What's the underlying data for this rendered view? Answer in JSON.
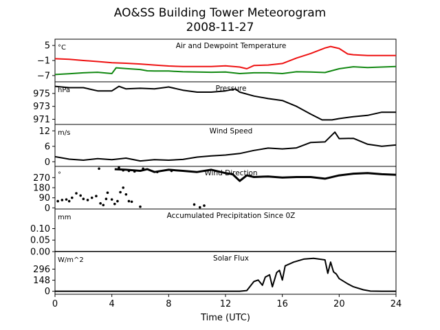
{
  "title": "AO&SS Building Tower Meteorogram",
  "subtitle": "2008-11-27",
  "colors": {
    "air_temp": "#ee1111",
    "dewpoint": "#118811",
    "trace": "#000000"
  },
  "chart_data": [
    {
      "type": "line",
      "label": "Air and Dewpoint Temperature",
      "unit": "°C",
      "xlabel": "",
      "ylim": [
        -9.5,
        7.5
      ],
      "yticks": [
        5,
        -1,
        -7
      ],
      "ytick_labels": [
        "5",
        "−1",
        "−7"
      ],
      "series": [
        {
          "key": "air",
          "color": "#ee1111",
          "points": [
            [
              0,
              -0.3
            ],
            [
              1,
              -0.5
            ],
            [
              2,
              -1.0
            ],
            [
              3,
              -1.4
            ],
            [
              4,
              -1.9
            ],
            [
              5,
              -2.1
            ],
            [
              6,
              -2.4
            ],
            [
              7,
              -2.8
            ],
            [
              8,
              -3.2
            ],
            [
              9,
              -3.4
            ],
            [
              10,
              -3.4
            ],
            [
              11,
              -3.4
            ],
            [
              12,
              -3.1
            ],
            [
              13,
              -3.6
            ],
            [
              13.5,
              -4.3
            ],
            [
              14,
              -3.0
            ],
            [
              15,
              -2.8
            ],
            [
              16,
              -2.2
            ],
            [
              17,
              0.0
            ],
            [
              18,
              1.8
            ],
            [
              19,
              4.0
            ],
            [
              19.4,
              4.6
            ],
            [
              20,
              3.8
            ],
            [
              20.6,
              1.6
            ],
            [
              21,
              1.3
            ],
            [
              22,
              1.0
            ],
            [
              23,
              1.0
            ],
            [
              24,
              1.0
            ]
          ]
        },
        {
          "key": "dew",
          "color": "#118811",
          "points": [
            [
              0,
              -6.6
            ],
            [
              1,
              -6.3
            ],
            [
              2,
              -5.9
            ],
            [
              3,
              -5.7
            ],
            [
              4,
              -6.2
            ],
            [
              4.3,
              -3.9
            ],
            [
              5,
              -4.2
            ],
            [
              6,
              -4.6
            ],
            [
              6.5,
              -5.1
            ],
            [
              7,
              -5.2
            ],
            [
              8,
              -5.2
            ],
            [
              9,
              -5.5
            ],
            [
              10,
              -5.6
            ],
            [
              11,
              -5.7
            ],
            [
              12,
              -5.6
            ],
            [
              13,
              -6.2
            ],
            [
              14,
              -5.9
            ],
            [
              15,
              -5.9
            ],
            [
              16,
              -6.2
            ],
            [
              17,
              -5.5
            ],
            [
              18,
              -5.6
            ],
            [
              19,
              -5.8
            ],
            [
              20,
              -4.3
            ],
            [
              21,
              -3.5
            ],
            [
              22,
              -3.8
            ],
            [
              23,
              -3.6
            ],
            [
              24,
              -3.4
            ]
          ]
        }
      ]
    },
    {
      "type": "line",
      "label": "Pressure",
      "unit": "hPa",
      "ylim": [
        970.2,
        976.8
      ],
      "yticks": [
        975,
        973,
        971
      ],
      "ytick_labels": [
        "975",
        "973",
        "971"
      ],
      "series": [
        {
          "key": "pressure",
          "color": "#000000",
          "points": [
            [
              0,
              976.1
            ],
            [
              1,
              975.9
            ],
            [
              2,
              975.9
            ],
            [
              3,
              975.4
            ],
            [
              4,
              975.4
            ],
            [
              4.5,
              976.1
            ],
            [
              5,
              975.7
            ],
            [
              6,
              975.8
            ],
            [
              7,
              975.7
            ],
            [
              8,
              976.0
            ],
            [
              9,
              975.5
            ],
            [
              10,
              975.2
            ],
            [
              11,
              975.2
            ],
            [
              12,
              975.4
            ],
            [
              12.7,
              975.7
            ],
            [
              13,
              975.2
            ],
            [
              14,
              974.6
            ],
            [
              15,
              974.2
            ],
            [
              16,
              973.9
            ],
            [
              17,
              973.0
            ],
            [
              18,
              971.8
            ],
            [
              18.8,
              970.9
            ],
            [
              19.5,
              970.9
            ],
            [
              20,
              971.1
            ],
            [
              21,
              971.4
            ],
            [
              22,
              971.6
            ],
            [
              23,
              972.1
            ],
            [
              24,
              972.1
            ]
          ]
        }
      ]
    },
    {
      "type": "line",
      "label": "Wind Speed",
      "unit": "m/s",
      "ylim": [
        -1.8,
        14.5
      ],
      "yticks": [
        12,
        6,
        0
      ],
      "ytick_labels": [
        "12",
        "6",
        "0"
      ],
      "series": [
        {
          "key": "wind_speed",
          "color": "#000000",
          "points": [
            [
              0,
              2.0
            ],
            [
              1,
              1.0
            ],
            [
              2,
              0.6
            ],
            [
              3,
              1.2
            ],
            [
              4,
              0.8
            ],
            [
              5,
              1.4
            ],
            [
              6,
              0.3
            ],
            [
              7,
              0.8
            ],
            [
              8,
              0.6
            ],
            [
              9,
              0.9
            ],
            [
              10,
              1.8
            ],
            [
              11,
              2.3
            ],
            [
              12,
              2.6
            ],
            [
              13,
              3.2
            ],
            [
              14,
              4.4
            ],
            [
              15,
              5.3
            ],
            [
              16,
              5.0
            ],
            [
              17,
              5.4
            ],
            [
              18,
              7.5
            ],
            [
              19,
              7.7
            ],
            [
              19.7,
              11.5
            ],
            [
              20,
              9.0
            ],
            [
              21,
              9.1
            ],
            [
              22,
              6.8
            ],
            [
              23,
              6.0
            ],
            [
              24,
              6.5
            ]
          ]
        }
      ]
    },
    {
      "type": "scatter",
      "label": "Wind Direction",
      "unit": "°",
      "ylim": [
        -10,
        370
      ],
      "yticks": [
        270,
        180,
        90,
        0
      ],
      "ytick_labels": [
        "270",
        "180",
        "90",
        "0"
      ],
      "series": [
        {
          "key": "wind_dir_scatter",
          "color": "#000000",
          "points": [
            [
              0.2,
              60
            ],
            [
              0.5,
              70
            ],
            [
              0.8,
              75
            ],
            [
              1.0,
              60
            ],
            [
              1.2,
              90
            ],
            [
              1.5,
              130
            ],
            [
              1.8,
              110
            ],
            [
              2.0,
              80
            ],
            [
              2.3,
              70
            ],
            [
              2.6,
              90
            ],
            [
              2.9,
              105
            ],
            [
              3.2,
              40
            ],
            [
              3.4,
              25
            ],
            [
              3.6,
              80
            ],
            [
              3.7,
              135
            ],
            [
              4.0,
              75
            ],
            [
              4.2,
              35
            ],
            [
              4.4,
              60
            ],
            [
              4.6,
              140
            ],
            [
              4.8,
              180
            ],
            [
              5.0,
              120
            ],
            [
              5.2,
              60
            ],
            [
              5.4,
              55
            ],
            [
              6.0,
              10
            ],
            [
              4.8,
              335
            ],
            [
              5.2,
              330
            ],
            [
              5.6,
              325
            ],
            [
              3.1,
              350
            ],
            [
              9.8,
              30
            ],
            [
              10.2,
              5
            ],
            [
              10.5,
              20
            ],
            [
              4.5,
              360
            ],
            [
              6.2,
              350
            ],
            [
              7.2,
              320
            ],
            [
              8.2,
              330
            ]
          ]
        },
        {
          "key": "wind_dir_line",
          "color": "#000000",
          "points": [
            [
              4.2,
              345
            ],
            [
              5.0,
              340
            ],
            [
              6.0,
              330
            ],
            [
              6.5,
              345
            ],
            [
              7.0,
              320
            ],
            [
              8.0,
              340
            ],
            [
              9.0,
              330
            ],
            [
              10.0,
              320
            ],
            [
              11.0,
              340
            ],
            [
              12.0,
              310
            ],
            [
              12.5,
              300
            ],
            [
              13.0,
              240
            ],
            [
              13.5,
              290
            ],
            [
              14,
              275
            ],
            [
              15,
              280
            ],
            [
              16,
              270
            ],
            [
              17,
              275
            ],
            [
              18,
              275
            ],
            [
              19,
              260
            ],
            [
              20,
              290
            ],
            [
              21,
              305
            ],
            [
              22,
              310
            ],
            [
              23,
              300
            ],
            [
              24,
              295
            ]
          ]
        }
      ]
    },
    {
      "type": "line",
      "label": "Accumulated Precipitation Since 0Z",
      "unit": "mm",
      "ylim": [
        0,
        0.185
      ],
      "yticks": [
        0.1,
        0.05,
        0.0
      ],
      "ytick_labels": [
        "0.10",
        "0.05",
        "0.00"
      ],
      "series": [
        {
          "key": "precip",
          "color": "#000000",
          "points": [
            [
              0,
              0
            ],
            [
              24,
              0
            ]
          ]
        }
      ]
    },
    {
      "type": "line",
      "label": "Solar Flux",
      "unit": "W/m^2",
      "xlabel": "Time (UTC)",
      "xlim": [
        0,
        24
      ],
      "xticks": [
        0,
        4,
        8,
        12,
        16,
        20,
        24
      ],
      "xtick_labels": [
        "0",
        "4",
        "8",
        "12",
        "16",
        "20",
        "24"
      ],
      "ylim": [
        -40,
        530
      ],
      "yticks": [
        296,
        148,
        0
      ],
      "ytick_labels": [
        "296",
        "148",
        "0"
      ],
      "series": [
        {
          "key": "solar",
          "color": "#000000",
          "points": [
            [
              0,
              0
            ],
            [
              13,
              0
            ],
            [
              13.5,
              10
            ],
            [
              14,
              130
            ],
            [
              14.3,
              150
            ],
            [
              14.6,
              80
            ],
            [
              14.8,
              190
            ],
            [
              15.1,
              220
            ],
            [
              15.3,
              60
            ],
            [
              15.6,
              250
            ],
            [
              15.8,
              280
            ],
            [
              16.0,
              150
            ],
            [
              16.2,
              340
            ],
            [
              16.8,
              390
            ],
            [
              17.5,
              430
            ],
            [
              18.2,
              440
            ],
            [
              19.0,
              420
            ],
            [
              19.2,
              240
            ],
            [
              19.4,
              390
            ],
            [
              19.6,
              260
            ],
            [
              19.8,
              230
            ],
            [
              20,
              170
            ],
            [
              20.6,
              100
            ],
            [
              21,
              60
            ],
            [
              21.7,
              20
            ],
            [
              22.2,
              2
            ],
            [
              23,
              0
            ],
            [
              24,
              0
            ]
          ]
        }
      ]
    }
  ]
}
